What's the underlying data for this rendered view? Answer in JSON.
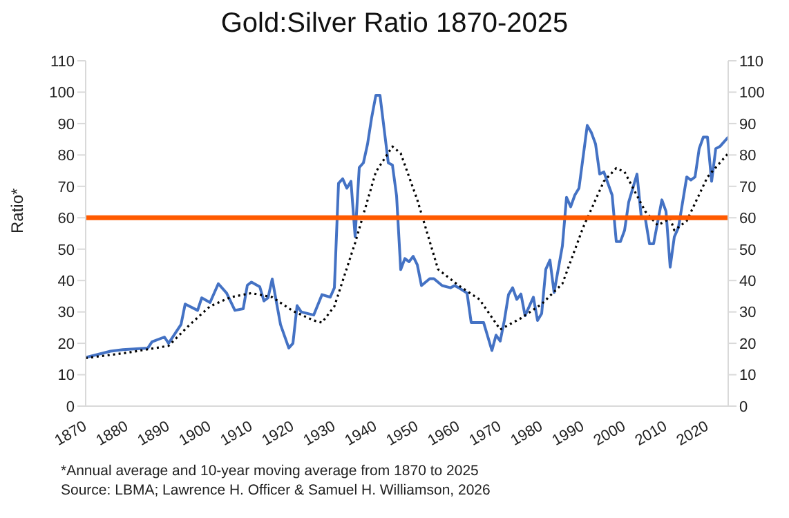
{
  "chart_data": {
    "type": "line",
    "title": "Gold:Silver Ratio 1870-2025",
    "ylabel": "Ratio*",
    "xlim": [
      1870,
      2025
    ],
    "xticks": [
      1870,
      1880,
      1890,
      1900,
      1910,
      1920,
      1930,
      1940,
      1950,
      1960,
      1970,
      1980,
      1990,
      2000,
      2010,
      2020
    ],
    "ylim": [
      0,
      110
    ],
    "yticks": [
      0,
      10,
      20,
      30,
      40,
      50,
      60,
      70,
      80,
      90,
      100,
      110
    ],
    "y2lim": [
      0,
      110
    ],
    "y2ticks": [
      0,
      10,
      20,
      30,
      40,
      50,
      60,
      70,
      80,
      90,
      100,
      110
    ],
    "grid": false,
    "series": [
      {
        "color": "#4472c4",
        "line_style": "solid",
        "x": [
          1870,
          1876,
          1879,
          1885,
          1886,
          1889,
          1890,
          1893,
          1894,
          1897,
          1898,
          1900,
          1902,
          1904,
          1906,
          1908,
          1909,
          1910,
          1912,
          1913,
          1914,
          1915,
          1917,
          1919,
          1920,
          1921,
          1922,
          1925,
          1927,
          1929,
          1930,
          1931,
          1932,
          1933,
          1934,
          1935,
          1936,
          1937,
          1938,
          1939,
          1940,
          1941,
          1943,
          1944,
          1945,
          1946,
          1947,
          1948,
          1949,
          1950,
          1951,
          1953,
          1954,
          1956,
          1958,
          1959,
          1960,
          1962,
          1963,
          1965,
          1966,
          1968,
          1969,
          1970,
          1971,
          1972,
          1973,
          1974,
          1975,
          1976,
          1978,
          1979,
          1980,
          1981,
          1982,
          1983,
          1985,
          1986,
          1987,
          1988,
          1989,
          1991,
          1992,
          1993,
          1994,
          1995,
          1997,
          1998,
          1999,
          2000,
          2001,
          2003,
          2004,
          2005,
          2006,
          2007,
          2009,
          2010,
          2011,
          2012,
          2013,
          2015,
          2016,
          2017,
          2018,
          2019,
          2020,
          2021,
          2022,
          2023,
          2025
        ],
        "values": [
          15.5,
          17.5,
          18,
          18.5,
          20.5,
          22,
          20,
          26,
          32.5,
          30.5,
          34.5,
          33,
          39,
          36,
          30.5,
          31,
          38.5,
          39.5,
          38,
          33.5,
          34.5,
          40.5,
          26,
          18.5,
          20,
          32,
          30,
          29,
          35.5,
          34.7,
          37.7,
          71,
          72.4,
          69.4,
          71.6,
          54,
          76,
          77.5,
          83.5,
          92,
          99,
          99,
          77.5,
          76.8,
          67,
          43.5,
          47,
          46,
          47.7,
          45,
          38.4,
          40.6,
          40.6,
          38.4,
          37.7,
          38.4,
          37.7,
          36,
          26.6,
          26.6,
          26.6,
          17.7,
          22.6,
          20.7,
          27.3,
          35.5,
          37.7,
          34,
          35.7,
          28.8,
          34.7,
          27.3,
          29.5,
          43.6,
          46.5,
          36.2,
          51,
          66.5,
          63.5,
          67.2,
          69.4,
          89.4,
          87.1,
          83.5,
          73.9,
          74.6,
          67.2,
          52.4,
          52.4,
          56,
          65,
          73.9,
          60.6,
          59.8,
          51.7,
          51.7,
          65.7,
          62,
          44.3,
          53.9,
          56.9,
          73,
          72,
          73,
          82,
          85.7,
          85.7,
          71.6,
          82,
          82.7,
          85.7
        ]
      },
      {
        "color": "#000000",
        "line_style": "dotted",
        "x": [
          1870,
          1880,
          1890,
          1895,
          1900,
          1905,
          1910,
          1915,
          1920,
          1925,
          1927,
          1930,
          1935,
          1940,
          1944,
          1946,
          1950,
          1955,
          1960,
          1965,
          1970,
          1975,
          1980,
          1985,
          1990,
          1995,
          1998,
          2000,
          2005,
          2008,
          2011,
          2012,
          2015,
          2020,
          2025
        ],
        "values": [
          15.3,
          17,
          19.2,
          25.8,
          31.8,
          34.7,
          36,
          34.7,
          30.3,
          27.3,
          26.6,
          31.8,
          52,
          74.6,
          82.7,
          80.5,
          65.7,
          43.6,
          38.4,
          34,
          24.4,
          28,
          32.5,
          39,
          56.9,
          71.6,
          75.8,
          74.6,
          62,
          57.6,
          59.8,
          56,
          59,
          73,
          80.5
        ]
      }
    ],
    "ref_lines": [
      {
        "axis": "y",
        "value": 60,
        "color": "#ff5a00",
        "line_style": "solid"
      }
    ],
    "annotations": [
      "*Annual average and 10-year moving average from 1870 to 2025",
      "Source: LBMA; Lawrence H. Officer & Samuel H. Williamson, 2026"
    ]
  }
}
